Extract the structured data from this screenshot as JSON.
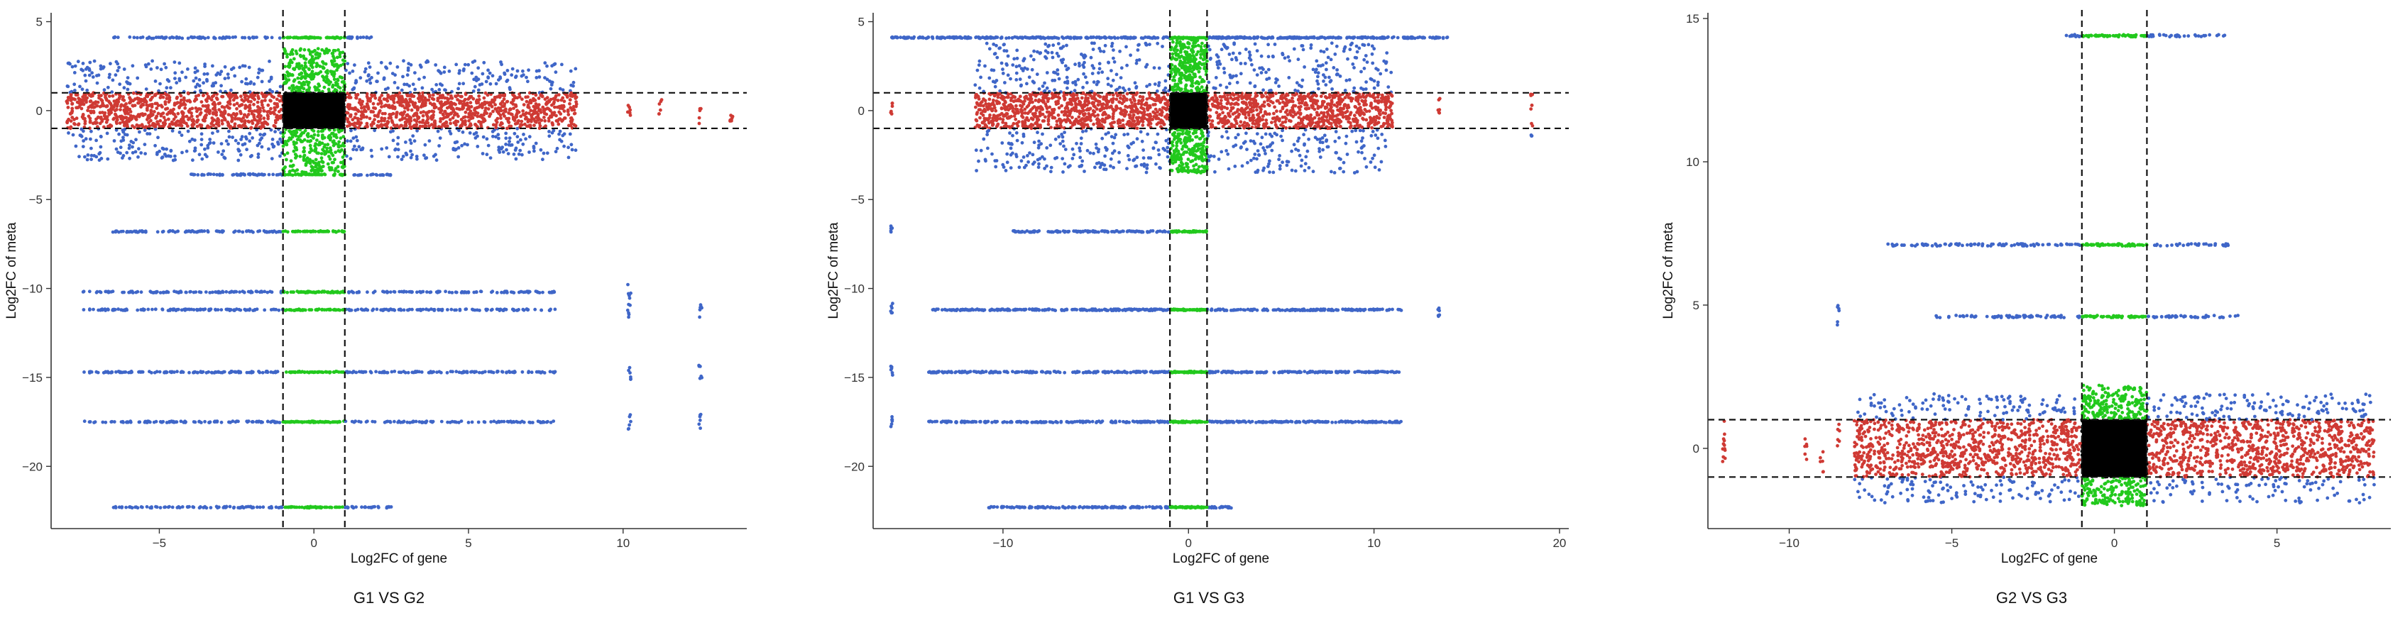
{
  "colors": {
    "outer": "#3f66c8",
    "middle": "#cf3a34",
    "vertical": "#22c91d",
    "center": "#000000",
    "axis": "#333333",
    "threshold": "#111111"
  },
  "chart_data": [
    {
      "type": "scatter",
      "caption": "G1 VS G2",
      "xlabel": "Log2FC of gene",
      "ylabel": "Log2FC of meta",
      "xlim": [
        -8.5,
        14
      ],
      "ylim": [
        -23.5,
        5.5
      ],
      "xticks": [
        -5,
        0,
        5,
        10
      ],
      "yticks": [
        5,
        0,
        -5,
        -10,
        -15,
        -20
      ],
      "thresholds": {
        "x": [
          -1,
          1
        ],
        "y": [
          -1,
          1
        ]
      },
      "grid": false,
      "dense_band": {
        "x": [
          -8,
          8.5
        ],
        "y": [
          -2.8,
          2.8
        ]
      },
      "side_y": [
        -3.5,
        3.5
      ],
      "rows": [
        {
          "y": 4.1,
          "x": [
            -6.5,
            2
          ]
        },
        {
          "y": -3.6,
          "x": [
            -4,
            2.6
          ]
        },
        {
          "y": -6.8,
          "x": [
            -6.5,
            1
          ]
        },
        {
          "y": -10.2,
          "x": [
            -7.5,
            7.8
          ]
        },
        {
          "y": -11.2,
          "x": [
            -7.5,
            7.8
          ]
        },
        {
          "y": -14.7,
          "x": [
            -7.5,
            7.8
          ]
        },
        {
          "y": -17.5,
          "x": [
            -7.5,
            7.8
          ]
        },
        {
          "y": -22.3,
          "x": [
            -6.5,
            2.5
          ]
        }
      ],
      "far_points": [
        {
          "x": 10.2,
          "y": 0.0
        },
        {
          "x": 10.2,
          "y": -10.2
        },
        {
          "x": 10.2,
          "y": -11.2
        },
        {
          "x": 10.2,
          "y": -14.7
        },
        {
          "x": 10.2,
          "y": -17.5
        },
        {
          "x": 11.2,
          "y": 0.2
        },
        {
          "x": 12.5,
          "y": -0.3
        },
        {
          "x": 12.5,
          "y": -11.2
        },
        {
          "x": 12.5,
          "y": -14.7
        },
        {
          "x": 12.5,
          "y": -17.5
        },
        {
          "x": 13.5,
          "y": -0.5
        }
      ]
    },
    {
      "type": "scatter",
      "caption": "G1 VS G3",
      "xlabel": "Log2FC of gene",
      "ylabel": "Log2FC of meta",
      "xlim": [
        -17,
        20.5
      ],
      "ylim": [
        -23.5,
        5.5
      ],
      "xticks": [
        -10,
        0,
        10,
        20
      ],
      "yticks": [
        5,
        0,
        -5,
        -10,
        -15,
        -20
      ],
      "thresholds": {
        "x": [
          -1,
          1
        ],
        "y": [
          -1,
          1
        ]
      },
      "grid": false,
      "dense_band": {
        "x": [
          -11.5,
          11
        ],
        "y": [
          -3.5,
          3.8
        ]
      },
      "side_y": [
        -3.5,
        4.1
      ],
      "rows": [
        {
          "y": 4.1,
          "x": [
            -16,
            14
          ]
        },
        {
          "y": -6.8,
          "x": [
            -9.5,
            1
          ]
        },
        {
          "y": -11.2,
          "x": [
            -14,
            11.5
          ]
        },
        {
          "y": -14.7,
          "x": [
            -14,
            11.5
          ]
        },
        {
          "y": -17.5,
          "x": [
            -14,
            11.5
          ]
        },
        {
          "y": -22.3,
          "x": [
            -11,
            2.5
          ]
        }
      ],
      "far_points": [
        {
          "x": -16,
          "y": 0.2
        },
        {
          "x": -16,
          "y": -6.8
        },
        {
          "x": -16,
          "y": -11.2
        },
        {
          "x": -16,
          "y": -14.7
        },
        {
          "x": -16,
          "y": -17.5
        },
        {
          "x": 13.5,
          "y": 0.3
        },
        {
          "x": 13.5,
          "y": -11.2
        },
        {
          "x": 18.5,
          "y": 0.5
        },
        {
          "x": 18.5,
          "y": -1.0
        }
      ]
    },
    {
      "type": "scatter",
      "caption": "G2 VS G3",
      "xlabel": "Log2FC of gene",
      "ylabel": "Log2FC of meta",
      "xlim": [
        -12.5,
        8.5
      ],
      "ylim": [
        -2.8,
        15.2
      ],
      "xticks": [
        -10,
        -5,
        0,
        5
      ],
      "yticks": [
        15,
        10,
        5,
        0
      ],
      "thresholds": {
        "x": [
          -1,
          1
        ],
        "y": [
          -1,
          1
        ]
      },
      "grid": false,
      "dense_band": {
        "x": [
          -8,
          8
        ],
        "y": [
          -1.9,
          1.9
        ]
      },
      "side_y": [
        -2,
        2.2
      ],
      "rows": [
        {
          "y": 14.4,
          "x": [
            -1.5,
            3.5
          ]
        },
        {
          "y": 7.1,
          "x": [
            -7,
            3.5
          ]
        },
        {
          "y": 4.6,
          "x": [
            -5.5,
            3.8
          ]
        }
      ],
      "far_points": [
        {
          "x": -12,
          "y": 0.5
        },
        {
          "x": -12,
          "y": -0.3
        },
        {
          "x": -9.5,
          "y": 0.0
        },
        {
          "x": -9,
          "y": -0.4
        },
        {
          "x": -8.5,
          "y": 4.6
        },
        {
          "x": -8.5,
          "y": 0.4
        }
      ]
    }
  ]
}
